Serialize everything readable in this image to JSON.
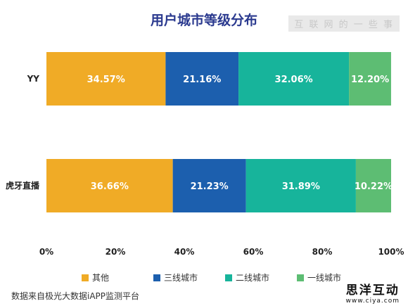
{
  "watermark_top": "互 联 网 的 一 些 事",
  "watermark_bottom": {
    "name": "思洋互动",
    "url": "www.ciya.com"
  },
  "source": "数据来自极光大数据iAPP监测平台",
  "chart_data": {
    "type": "bar",
    "orientation": "horizontal",
    "stacked": "percent",
    "title": "用户城市等级分布",
    "categories": [
      "YY",
      "虎牙直播"
    ],
    "series": [
      {
        "name": "其他",
        "color": "#f0ab26",
        "values": [
          34.57,
          36.66
        ],
        "labels": [
          "34.57%",
          "36.66%"
        ]
      },
      {
        "name": "三线城市",
        "color": "#1c5fae",
        "values": [
          21.16,
          21.23
        ],
        "labels": [
          "21.16%",
          "21.23%"
        ]
      },
      {
        "name": "二线城市",
        "color": "#17b49b",
        "values": [
          32.06,
          31.89
        ],
        "labels": [
          "32.06%",
          "31.89%"
        ]
      },
      {
        "name": "一线城市",
        "color": "#5dbd73",
        "values": [
          12.2,
          10.22
        ],
        "labels": [
          "12.20%",
          "10.22%"
        ]
      }
    ],
    "xlim": [
      0,
      100
    ],
    "x_ticks": [
      "0%",
      "20%",
      "40%",
      "60%",
      "80%",
      "100%"
    ],
    "grid": false,
    "legend_position": "bottom"
  }
}
